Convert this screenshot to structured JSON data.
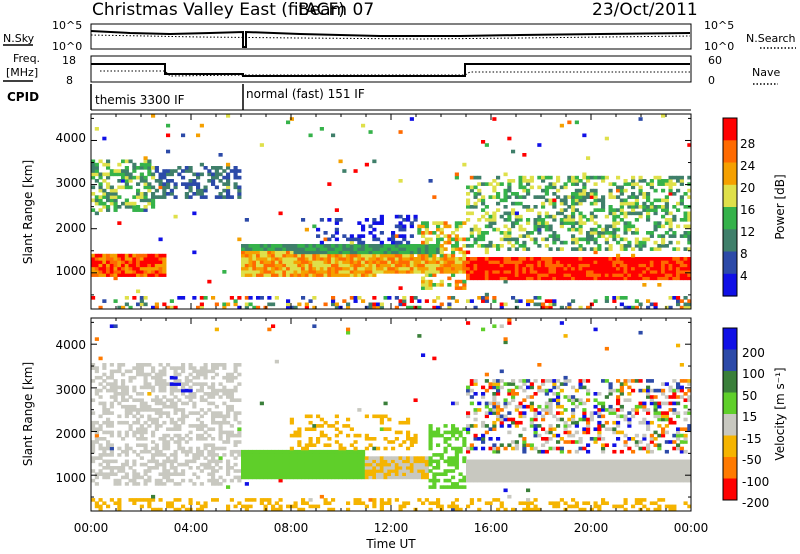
{
  "header": {
    "title": "Christmas Valley East (fitACF)",
    "beam": "Beam 07",
    "date": "23/Oct/2011"
  },
  "strips": {
    "nsky_label": "N.Sky",
    "nsearch_label": "N.Search",
    "noise_ticks_left": [
      "10^5",
      "10^0"
    ],
    "noise_ticks_right": [
      "10^5",
      "10^0"
    ],
    "freq_label_line1": "Freq.",
    "freq_label_line2": "[MHz]",
    "freq_ticks": [
      "18",
      "8"
    ],
    "nave_label": "Nave",
    "nave_ticks": [
      "60",
      "0"
    ],
    "cpid_label": "CPID",
    "cpid_mode_1": "themis 3300 IF",
    "cpid_mode_2": "normal (fast) 151 IF"
  },
  "chart_data": [
    {
      "type": "heatmap",
      "name": "power",
      "xlabel": "Time UT",
      "ylabel": "Slant Range [km]",
      "xlim": [
        0,
        24
      ],
      "ylim": [
        180,
        4600
      ],
      "x_ticks": [
        "00:00",
        "04:00",
        "08:00",
        "12:00",
        "16:00",
        "20:00",
        "00:00"
      ],
      "y_ticks": [
        "1000",
        "2000",
        "3000",
        "4000"
      ],
      "colorbar_label": "Power [dB]",
      "colorbar_ticks": [
        "4",
        "8",
        "12",
        "16",
        "20",
        "24",
        "28"
      ],
      "colors": [
        "#1010e6",
        "#2c4aa8",
        "#3f7f6a",
        "#35b24a",
        "#dfe04a",
        "#f5a000",
        "#ff6a00",
        "#ff0000"
      ]
    },
    {
      "type": "heatmap",
      "name": "velocity",
      "xlabel": "Time UT",
      "ylabel": "Slant Range [km]",
      "xlim": [
        0,
        24
      ],
      "ylim": [
        180,
        4600
      ],
      "x_ticks": [
        "00:00",
        "04:00",
        "08:00",
        "12:00",
        "16:00",
        "20:00",
        "00:00"
      ],
      "y_ticks": [
        "1000",
        "2000",
        "3000",
        "4000"
      ],
      "colorbar_label": "Velocity [m s⁻¹]",
      "colorbar_ticks": [
        "200",
        "100",
        "50",
        "15",
        "-15",
        "-50",
        "-100",
        "-200"
      ],
      "colors": [
        "#1010e6",
        "#2c4aa8",
        "#3a7f3a",
        "#5fcf2a",
        "#c8c8c0",
        "#f5b400",
        "#ff7a00",
        "#ff0000"
      ]
    }
  ]
}
